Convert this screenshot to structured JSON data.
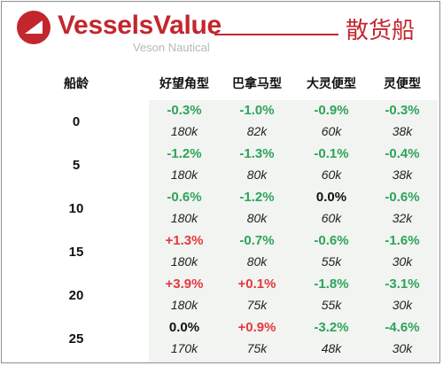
{
  "header": {
    "brand_name": "VesselsValue",
    "brand_subtitle": "Veson Nautical",
    "section_title": "散货船",
    "accent_color": "#c3262d",
    "logo_icon": "vesselsvalue-logo-icon"
  },
  "table": {
    "age_header": "船龄",
    "column_headers": [
      "好望角型",
      "巴拿马型",
      "大灵便型",
      "灵便型"
    ],
    "colors": {
      "negative": "#2fa35a",
      "positive": "#e5383f",
      "neutral": "#111111",
      "row_background": "#f1f4f1"
    },
    "rows": [
      {
        "age": "0",
        "changes": [
          "-0.3%",
          "-1.0%",
          "-0.9%",
          "-0.3%"
        ],
        "values": [
          "180k",
          "82k",
          "60k",
          "38k"
        ]
      },
      {
        "age": "5",
        "changes": [
          "-1.2%",
          "-1.3%",
          "-0.1%",
          "-0.4%"
        ],
        "values": [
          "180k",
          "80k",
          "60k",
          "38k"
        ]
      },
      {
        "age": "10",
        "changes": [
          "-0.6%",
          "-1.2%",
          "0.0%",
          "-0.6%"
        ],
        "values": [
          "180k",
          "80k",
          "60k",
          "32k"
        ]
      },
      {
        "age": "15",
        "changes": [
          "+1.3%",
          "-0.7%",
          "-0.6%",
          "-1.6%"
        ],
        "values": [
          "180k",
          "80k",
          "55k",
          "30k"
        ]
      },
      {
        "age": "20",
        "changes": [
          "+3.9%",
          "+0.1%",
          "-1.8%",
          "-3.1%"
        ],
        "values": [
          "180k",
          "75k",
          "55k",
          "30k"
        ]
      },
      {
        "age": "25",
        "changes": [
          "0.0%",
          "+0.9%",
          "-3.2%",
          "-4.6%"
        ],
        "values": [
          "170k",
          "75k",
          "48k",
          "30k"
        ]
      }
    ]
  }
}
